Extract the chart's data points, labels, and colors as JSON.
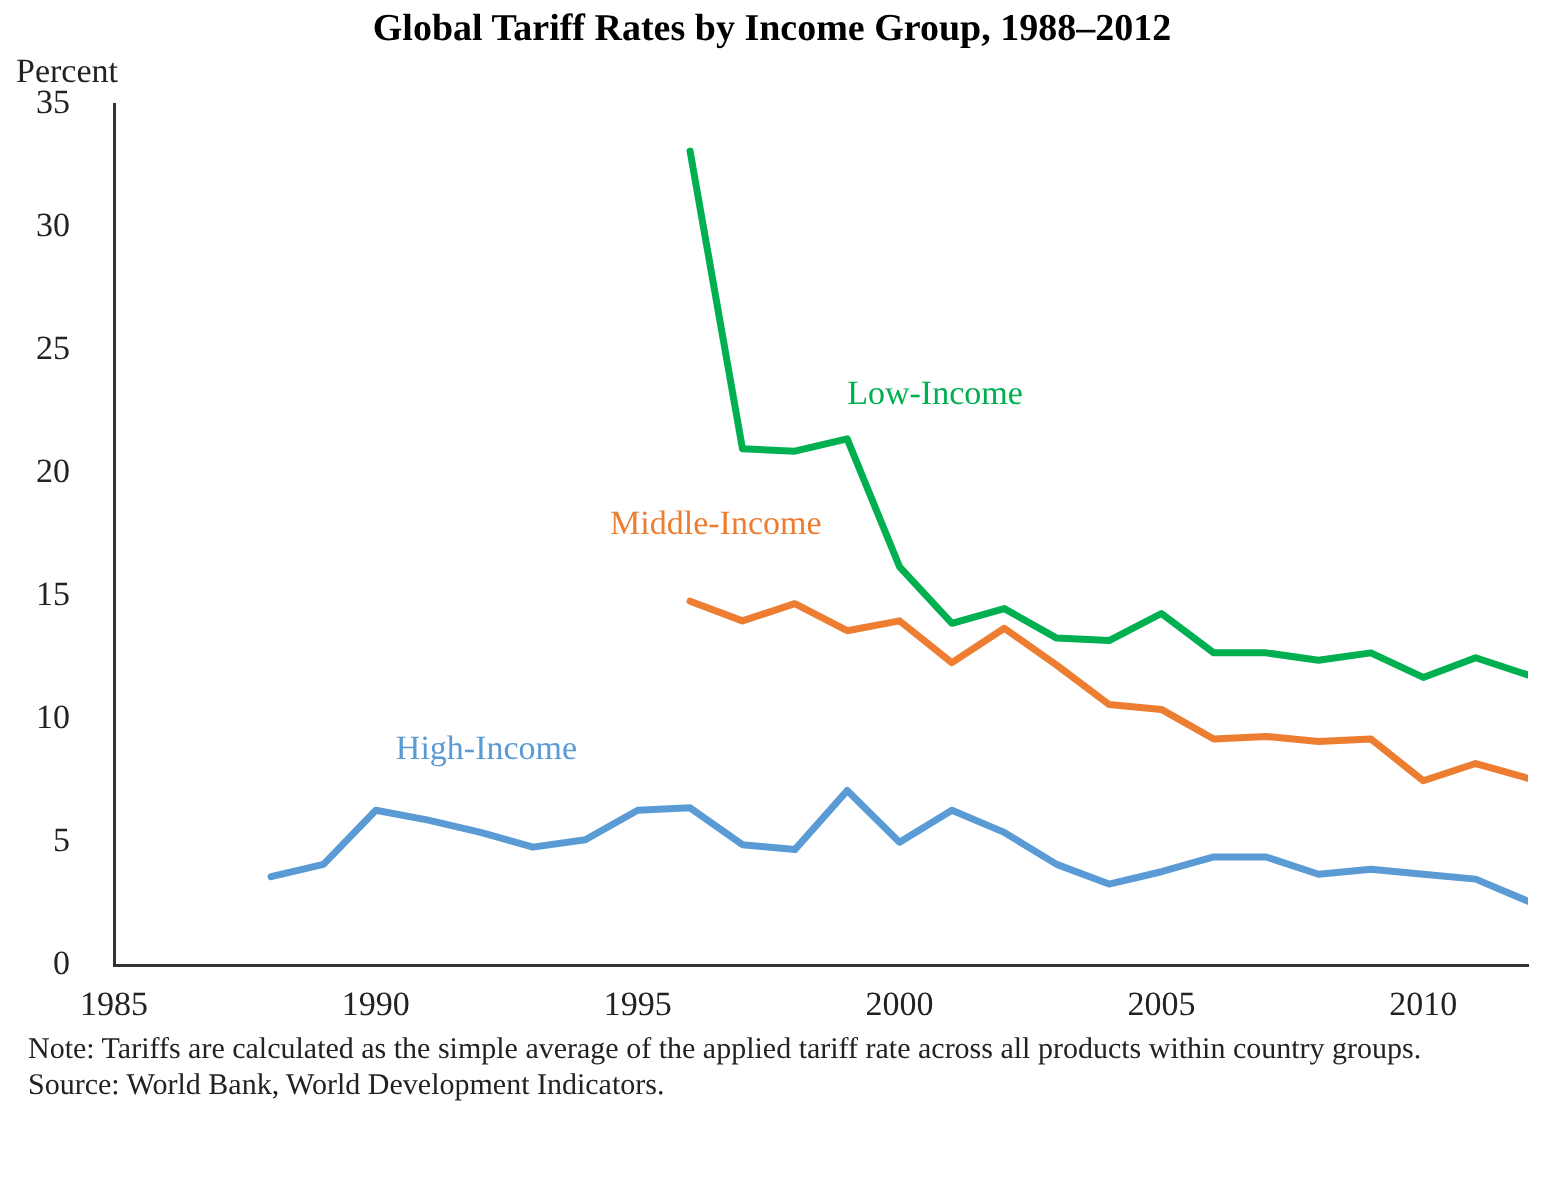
{
  "chart_data": {
    "type": "line",
    "title": "Global Tariff Rates by Income Group, 1988–2012",
    "ylabel": "Percent",
    "x": [
      1988,
      1989,
      1990,
      1991,
      1992,
      1993,
      1994,
      1995,
      1996,
      1997,
      1998,
      1999,
      2000,
      2001,
      2002,
      2003,
      2004,
      2005,
      2006,
      2007,
      2008,
      2009,
      2010,
      2011,
      2012
    ],
    "series": [
      {
        "name": "Low-Income",
        "color": "#00b050",
        "values": [
          null,
          null,
          null,
          null,
          null,
          null,
          null,
          null,
          33.1,
          21.0,
          20.9,
          21.4,
          16.2,
          13.9,
          14.5,
          13.3,
          13.2,
          14.3,
          12.7,
          12.7,
          12.4,
          12.7,
          11.7,
          12.5,
          11.8
        ]
      },
      {
        "name": "Middle-Income",
        "color": "#ed7d31",
        "values": [
          null,
          null,
          null,
          null,
          null,
          null,
          null,
          null,
          14.8,
          14.0,
          14.7,
          13.6,
          14.0,
          12.3,
          13.7,
          12.2,
          10.6,
          10.4,
          9.2,
          9.3,
          9.1,
          9.2,
          7.5,
          8.2,
          7.6
        ]
      },
      {
        "name": "High-Income",
        "color": "#5b9bd5",
        "values": [
          3.6,
          4.1,
          6.3,
          5.9,
          5.4,
          4.8,
          5.1,
          6.3,
          6.4,
          4.9,
          4.7,
          7.1,
          5.0,
          6.3,
          5.4,
          4.1,
          3.3,
          3.8,
          4.4,
          4.4,
          3.7,
          3.9,
          3.7,
          3.5,
          2.6
        ]
      }
    ],
    "xlim": [
      1985,
      2012
    ],
    "xticks": [
      1985,
      1990,
      1995,
      2000,
      2005,
      2010
    ],
    "ylim": [
      0,
      35
    ],
    "yticks": [
      0,
      5,
      10,
      15,
      20,
      25,
      30,
      35
    ],
    "grid": false,
    "legend": false,
    "marker": "none",
    "line_style": "solid",
    "annotations": [
      "Note: Tariffs are calculated as the simple average of the applied tariff rate across all products within country groups.",
      "Source: World Bank, World Development Indicators."
    ]
  }
}
